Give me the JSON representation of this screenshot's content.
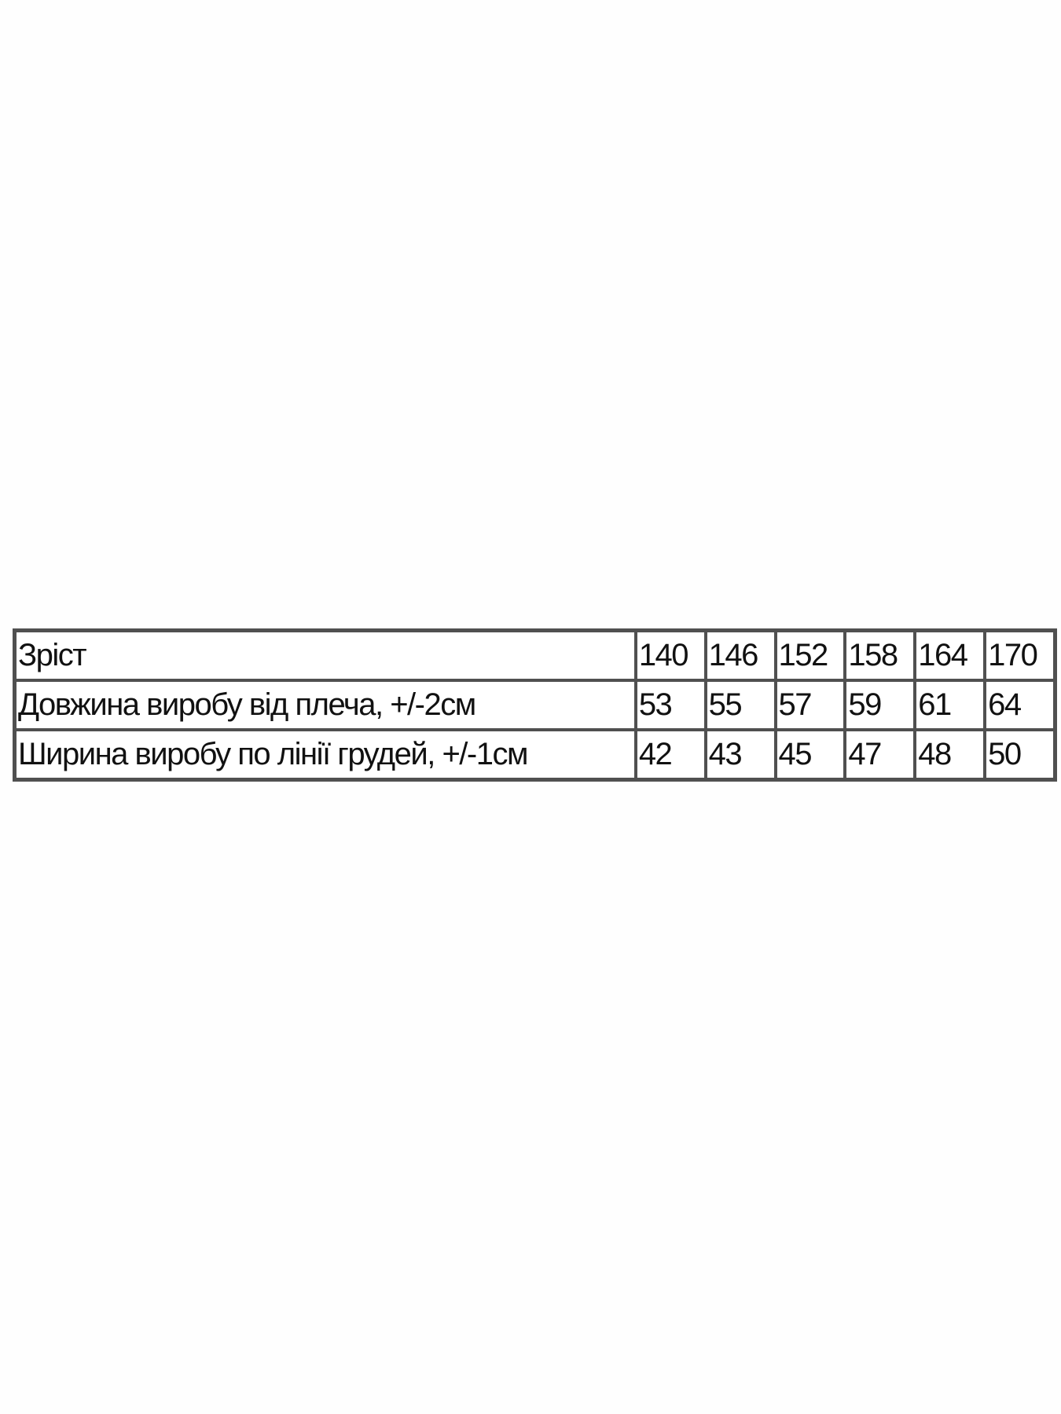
{
  "size_table": {
    "header": {
      "label": "Зріст",
      "values": [
        "140",
        "146",
        "152",
        "158",
        "164",
        "170"
      ]
    },
    "rows": [
      {
        "label": "Довжина виробу від плеча, +/-2см",
        "values": [
          "53",
          "55",
          "57",
          "59",
          "61",
          "64"
        ]
      },
      {
        "label": "Ширина виробу по лінії грудей, +/-1см",
        "values": [
          "42",
          "43",
          "45",
          "47",
          "48",
          "50"
        ]
      }
    ]
  }
}
